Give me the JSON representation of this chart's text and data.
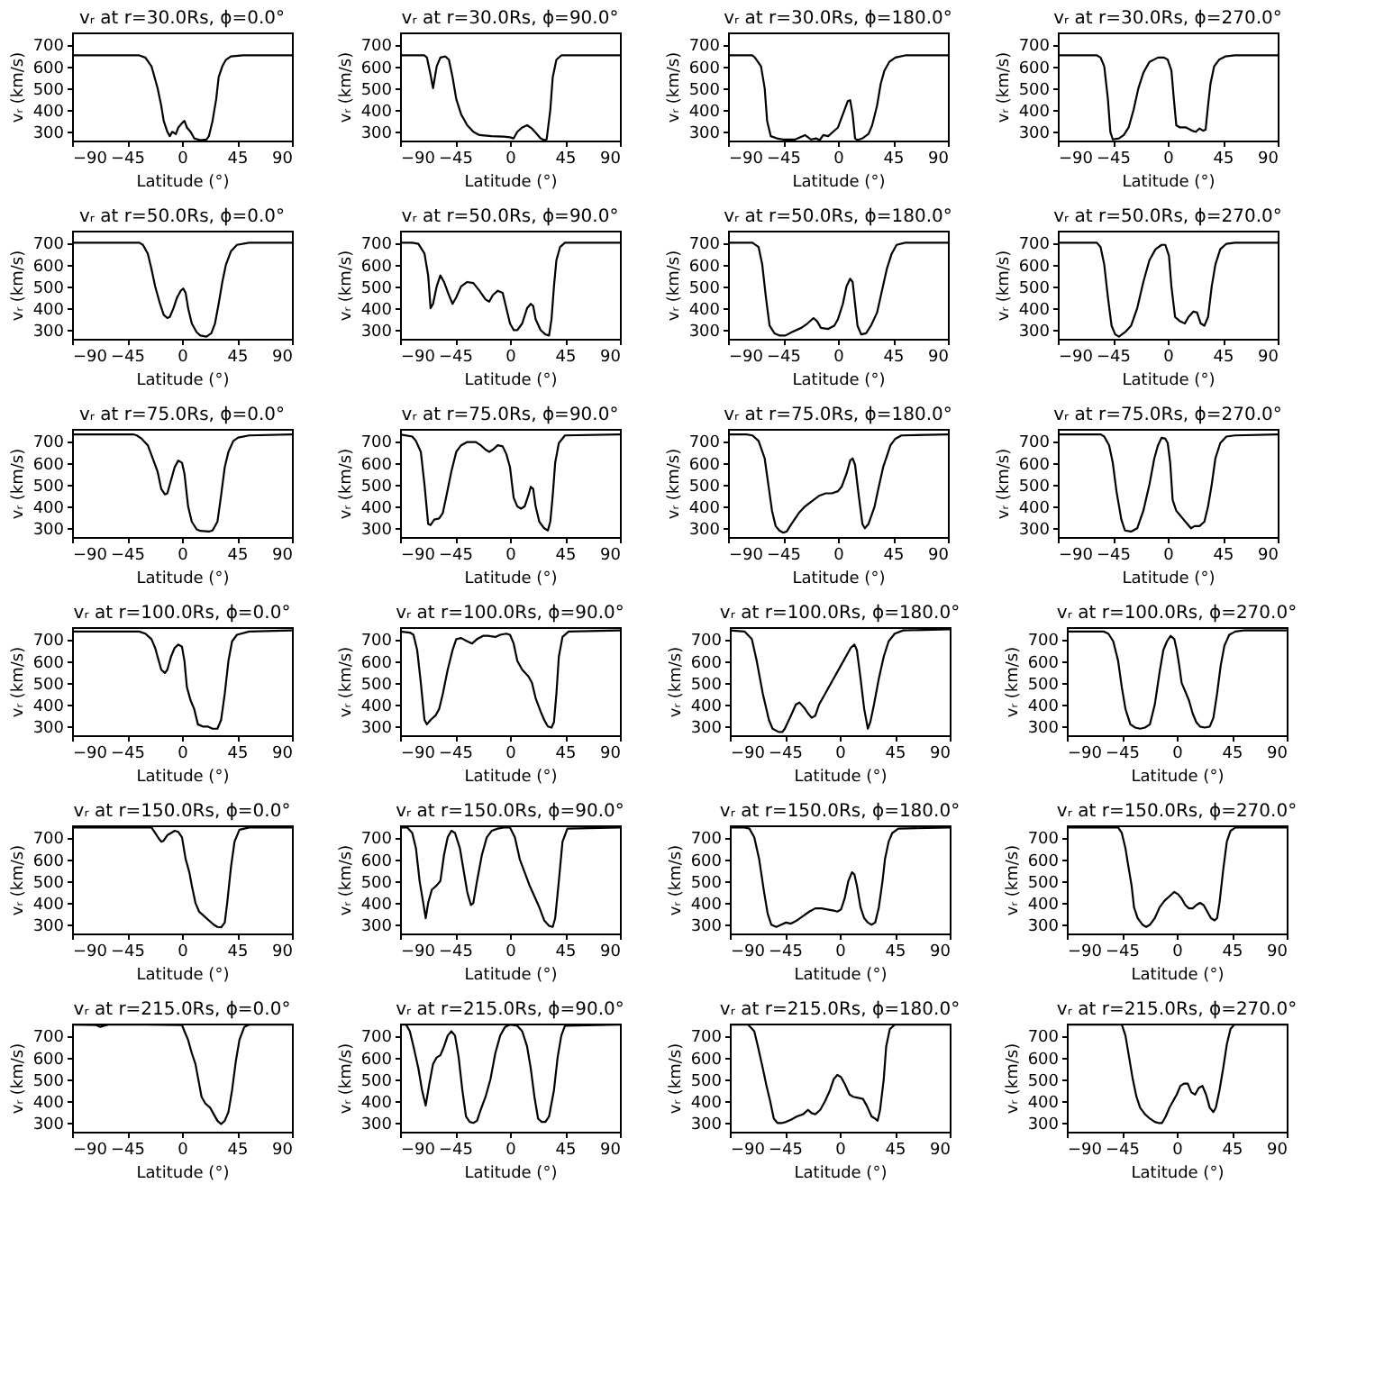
{
  "chart_data": [
    {
      "type": "line",
      "title": "vᵣ at r=30.0Rs, ϕ=0.0°",
      "xlabel": "Latitude (°)",
      "ylabel": "vᵣ (km/s)",
      "color": "#000000",
      "xlim": [
        -90,
        90
      ],
      "ylim": [
        260,
        755
      ],
      "xticks": [
        -90,
        -45,
        0,
        45,
        90
      ],
      "yticks": [
        300,
        400,
        500,
        600,
        700
      ],
      "x": [
        -90,
        -35,
        -30,
        -25,
        -20,
        -17,
        -15,
        -12,
        -10,
        -8,
        -5,
        -3,
        0,
        2,
        4,
        7,
        10,
        15,
        20,
        22,
        25,
        28,
        30,
        33,
        36,
        40,
        50,
        90
      ],
      "values": [
        650,
        650,
        640,
        600,
        500,
        420,
        350,
        300,
        280,
        300,
        290,
        320,
        340,
        350,
        320,
        300,
        270,
        262,
        265,
        280,
        350,
        450,
        550,
        600,
        630,
        645,
        650,
        650
      ]
    },
    {
      "type": "line",
      "title": "vᵣ at r=30.0Rs, ϕ=90.0°",
      "xlabel": "Latitude (°)",
      "ylabel": "vᵣ (km/s)",
      "color": "#000000",
      "xlim": [
        -90,
        90
      ],
      "ylim": [
        260,
        755
      ],
      "xticks": [
        -90,
        -45,
        0,
        45,
        90
      ],
      "yticks": [
        300,
        400,
        500,
        600,
        700
      ],
      "x": [
        -90,
        -70,
        -68,
        -65,
        -63,
        -60,
        -57,
        -53,
        -50,
        -47,
        -44,
        -40,
        -35,
        -30,
        -25,
        -15,
        -5,
        0,
        3,
        6,
        10,
        14,
        18,
        22,
        25,
        28,
        30,
        33,
        35,
        38,
        42,
        90
      ],
      "values": [
        650,
        650,
        640,
        560,
        500,
        600,
        640,
        645,
        630,
        550,
        450,
        380,
        330,
        300,
        285,
        280,
        278,
        275,
        270,
        300,
        320,
        330,
        315,
        290,
        270,
        262,
        265,
        400,
        550,
        630,
        650,
        650
      ]
    },
    {
      "type": "line",
      "title": "vᵣ at r=30.0Rs, ϕ=180.0°",
      "xlabel": "Latitude (°)",
      "ylabel": "vᵣ (km/s)",
      "color": "#000000",
      "xlim": [
        -90,
        90
      ],
      "ylim": [
        260,
        755
      ],
      "xticks": [
        -90,
        -45,
        0,
        45,
        90
      ],
      "yticks": [
        300,
        400,
        500,
        600,
        700
      ],
      "x": [
        -90,
        -70,
        -68,
        -63,
        -60,
        -58,
        -55,
        -50,
        -45,
        -35,
        -27,
        -22,
        -18,
        -15,
        -12,
        -8,
        -4,
        0,
        4,
        8,
        10,
        12,
        14,
        16,
        20,
        25,
        28,
        32,
        35,
        38,
        42,
        47,
        55,
        90
      ],
      "values": [
        650,
        650,
        640,
        600,
        500,
        350,
        280,
        270,
        265,
        265,
        285,
        265,
        270,
        262,
        285,
        280,
        300,
        320,
        380,
        440,
        445,
        380,
        270,
        262,
        270,
        290,
        330,
        420,
        520,
        580,
        620,
        640,
        650,
        650
      ]
    },
    {
      "type": "line",
      "title": "vᵣ at r=30.0Rs, ϕ=270.0°",
      "xlabel": "Latitude (°)",
      "ylabel": "vᵣ (km/s)",
      "color": "#000000",
      "xlim": [
        -90,
        90
      ],
      "ylim": [
        260,
        755
      ],
      "xticks": [
        -90,
        -45,
        0,
        45,
        90
      ],
      "yticks": [
        300,
        400,
        500,
        600,
        700
      ],
      "x": [
        -90,
        -58,
        -55,
        -52,
        -49,
        -47,
        -45,
        -40,
        -36,
        -32,
        -28,
        -24,
        -20,
        -15,
        -8,
        -3,
        0,
        3,
        5,
        7,
        10,
        15,
        20,
        23,
        26,
        29,
        31,
        33,
        35,
        38,
        42,
        47,
        55,
        90
      ],
      "values": [
        650,
        650,
        640,
        600,
        450,
        300,
        265,
        270,
        285,
        320,
        400,
        500,
        570,
        620,
        640,
        640,
        630,
        580,
        450,
        330,
        320,
        320,
        305,
        300,
        315,
        305,
        310,
        420,
        520,
        600,
        630,
        645,
        650,
        650
      ]
    },
    {
      "type": "line",
      "title": "vᵣ at r=50.0Rs, ϕ=0.0°",
      "xlabel": "Latitude (°)",
      "ylabel": "vᵣ (km/s)",
      "color": "#000000",
      "xlim": [
        -90,
        90
      ],
      "ylim": [
        260,
        755
      ],
      "xticks": [
        -90,
        -45,
        0,
        45,
        90
      ],
      "yticks": [
        300,
        400,
        500,
        600,
        700
      ],
      "x": [
        -90,
        -35,
        -32,
        -28,
        -25,
        -22,
        -18,
        -15,
        -12,
        -10,
        -7,
        -4,
        -1,
        1,
        3,
        5,
        8,
        12,
        15,
        20,
        24,
        27,
        30,
        33,
        36,
        40,
        45,
        55,
        90
      ],
      "values": [
        700,
        700,
        690,
        650,
        580,
        500,
        420,
        370,
        355,
        360,
        400,
        450,
        480,
        490,
        470,
        400,
        330,
        290,
        275,
        270,
        285,
        330,
        420,
        520,
        600,
        660,
        690,
        700,
        700
      ]
    },
    {
      "type": "line",
      "title": "vᵣ at r=50.0Rs, ϕ=90.0°",
      "xlabel": "Latitude (°)",
      "ylabel": "vᵣ (km/s)",
      "color": "#000000",
      "xlim": [
        -90,
        90
      ],
      "ylim": [
        260,
        755
      ],
      "xticks": [
        -90,
        -45,
        0,
        45,
        90
      ],
      "yticks": [
        300,
        400,
        500,
        600,
        700
      ],
      "x": [
        -90,
        -80,
        -75,
        -70,
        -67,
        -65,
        -63,
        -60,
        -57,
        -54,
        -50,
        -47,
        -44,
        -40,
        -35,
        -30,
        -25,
        -20,
        -17,
        -14,
        -10,
        -6,
        -3,
        0,
        3,
        6,
        10,
        14,
        17,
        19,
        21,
        25,
        29,
        32,
        34,
        36,
        38,
        41,
        45,
        90
      ],
      "values": [
        700,
        700,
        695,
        650,
        550,
        400,
        420,
        500,
        550,
        520,
        460,
        420,
        450,
        500,
        520,
        515,
        480,
        440,
        430,
        460,
        480,
        470,
        400,
        330,
        300,
        300,
        330,
        400,
        420,
        410,
        350,
        300,
        280,
        275,
        350,
        500,
        620,
        680,
        700,
        700
      ]
    },
    {
      "type": "line",
      "title": "vᵣ at r=50.0Rs, ϕ=180.0°",
      "xlabel": "Latitude (°)",
      "ylabel": "vᵣ (km/s)",
      "color": "#000000",
      "xlim": [
        -90,
        90
      ],
      "ylim": [
        260,
        755
      ],
      "xticks": [
        -90,
        -45,
        0,
        45,
        90
      ],
      "yticks": [
        300,
        400,
        500,
        600,
        700
      ],
      "x": [
        -90,
        -70,
        -65,
        -62,
        -59,
        -56,
        -52,
        -48,
        -43,
        -38,
        -30,
        -25,
        -20,
        -17,
        -14,
        -8,
        -3,
        0,
        4,
        7,
        10,
        12,
        14,
        16,
        19,
        23,
        27,
        32,
        36,
        40,
        44,
        48,
        55,
        90
      ],
      "values": [
        700,
        700,
        680,
        600,
        450,
        320,
        285,
        275,
        275,
        290,
        310,
        330,
        355,
        340,
        310,
        305,
        320,
        350,
        420,
        500,
        535,
        520,
        420,
        320,
        280,
        285,
        320,
        380,
        480,
        580,
        650,
        690,
        700,
        700
      ]
    },
    {
      "type": "line",
      "title": "vᵣ at r=50.0Rs, ϕ=270.0°",
      "xlabel": "Latitude (°)",
      "ylabel": "vᵣ (km/s)",
      "color": "#000000",
      "xlim": [
        -90,
        90
      ],
      "ylim": [
        260,
        755
      ],
      "xticks": [
        -90,
        -45,
        0,
        45,
        90
      ],
      "yticks": [
        300,
        400,
        500,
        600,
        700
      ],
      "x": [
        -90,
        -58,
        -55,
        -52,
        -49,
        -46,
        -43,
        -40,
        -35,
        -30,
        -25,
        -20,
        -15,
        -10,
        -5,
        -2,
        1,
        3,
        6,
        10,
        14,
        17,
        21,
        24,
        27,
        30,
        33,
        36,
        39,
        43,
        48,
        55,
        90
      ],
      "values": [
        700,
        700,
        680,
        600,
        450,
        320,
        280,
        270,
        290,
        320,
        400,
        520,
        620,
        670,
        690,
        690,
        640,
        500,
        360,
        340,
        330,
        360,
        385,
        380,
        330,
        320,
        360,
        500,
        600,
        670,
        695,
        700,
        700
      ]
    },
    {
      "type": "line",
      "title": "vᵣ at r=75.0Rs, ϕ=0.0°",
      "xlabel": "Latitude (°)",
      "ylabel": "vᵣ (km/s)",
      "color": "#000000",
      "xlim": [
        -90,
        90
      ],
      "ylim": [
        260,
        755
      ],
      "xticks": [
        -90,
        -45,
        0,
        45,
        90
      ],
      "yticks": [
        300,
        400,
        500,
        600,
        700
      ],
      "x": [
        -90,
        -40,
        -37,
        -33,
        -28,
        -24,
        -20,
        -17,
        -14,
        -12,
        -9,
        -6,
        -3,
        0,
        2,
        5,
        8,
        12,
        15,
        22,
        25,
        29,
        32,
        35,
        38,
        42,
        46,
        55,
        90
      ],
      "values": [
        730,
        730,
        725,
        710,
        680,
        620,
        560,
        480,
        455,
        460,
        520,
        580,
        610,
        600,
        550,
        400,
        330,
        295,
        288,
        285,
        290,
        330,
        450,
        580,
        650,
        700,
        715,
        725,
        730
      ]
    },
    {
      "type": "line",
      "title": "vᵣ at r=75.0Rs, ϕ=90.0°",
      "xlabel": "Latitude (°)",
      "ylabel": "vᵣ (km/s)",
      "color": "#000000",
      "xlim": [
        -90,
        90
      ],
      "ylim": [
        260,
        755
      ],
      "xticks": [
        -90,
        -45,
        0,
        45,
        90
      ],
      "yticks": [
        300,
        400,
        500,
        600,
        700
      ],
      "x": [
        -90,
        -80,
        -77,
        -73,
        -70,
        -67,
        -65,
        -62,
        -58,
        -55,
        -52,
        -48,
        -44,
        -40,
        -35,
        -28,
        -24,
        -20,
        -17,
        -14,
        -10,
        -6,
        -3,
        0,
        3,
        6,
        9,
        12,
        15,
        17,
        19,
        21,
        24,
        28,
        31,
        33,
        35,
        37,
        40,
        45,
        90
      ],
      "values": [
        730,
        720,
        700,
        650,
        500,
        320,
        315,
        340,
        345,
        370,
        450,
        560,
        650,
        680,
        695,
        695,
        680,
        660,
        650,
        660,
        680,
        675,
        640,
        580,
        440,
        400,
        390,
        400,
        450,
        490,
        480,
        400,
        330,
        300,
        290,
        330,
        450,
        600,
        690,
        725,
        730
      ]
    },
    {
      "type": "line",
      "title": "vᵣ at r=75.0Rs, ϕ=180.0°",
      "xlabel": "Latitude (°)",
      "ylabel": "vᵣ (km/s)",
      "color": "#000000",
      "xlim": [
        -90,
        90
      ],
      "ylim": [
        260,
        755
      ],
      "xticks": [
        -90,
        -45,
        0,
        45,
        90
      ],
      "yticks": [
        300,
        400,
        500,
        600,
        700
      ],
      "x": [
        -90,
        -75,
        -70,
        -65,
        -60,
        -57,
        -54,
        -51,
        -48,
        -45,
        -42,
        -38,
        -32,
        -27,
        -20,
        -15,
        -10,
        -5,
        0,
        3,
        7,
        10,
        12,
        14,
        17,
        20,
        22,
        25,
        30,
        33,
        37,
        40,
        43,
        47,
        52,
        90
      ],
      "values": [
        730,
        730,
        725,
        700,
        620,
        500,
        380,
        310,
        290,
        280,
        285,
        320,
        370,
        400,
        430,
        450,
        460,
        460,
        470,
        490,
        550,
        610,
        620,
        590,
        450,
        320,
        300,
        320,
        400,
        480,
        580,
        630,
        680,
        710,
        725,
        730
      ]
    },
    {
      "type": "line",
      "title": "vᵣ at r=75.0Rs, ϕ=270.0°",
      "xlabel": "Latitude (°)",
      "ylabel": "vᵣ (km/s)",
      "color": "#000000",
      "xlim": [
        -90,
        90
      ],
      "ylim": [
        260,
        755
      ],
      "xticks": [
        -90,
        -45,
        0,
        45,
        90
      ],
      "yticks": [
        300,
        400,
        500,
        600,
        700
      ],
      "x": [
        -90,
        -55,
        -52,
        -48,
        -45,
        -42,
        -38,
        -35,
        -30,
        -25,
        -20,
        -15,
        -11,
        -8,
        -5,
        -2,
        0,
        2,
        4,
        7,
        10,
        13,
        16,
        19,
        22,
        26,
        30,
        33,
        36,
        39,
        43,
        48,
        55,
        90
      ],
      "values": [
        730,
        730,
        720,
        680,
        600,
        470,
        340,
        290,
        285,
        300,
        380,
        500,
        620,
        680,
        715,
        710,
        690,
        600,
        430,
        380,
        360,
        340,
        320,
        300,
        310,
        310,
        330,
        400,
        500,
        620,
        690,
        720,
        725,
        730
      ]
    },
    {
      "type": "line",
      "title": "vᵣ at r=100.0Rs, ϕ=0.0°",
      "xlabel": "Latitude (°)",
      "ylabel": "vᵣ (km/s)",
      "color": "#000000",
      "xlim": [
        -90,
        90
      ],
      "ylim": [
        260,
        755
      ],
      "xticks": [
        -90,
        -45,
        0,
        45,
        90
      ],
      "yticks": [
        300,
        400,
        500,
        600,
        700
      ],
      "x": [
        -90,
        -35,
        -30,
        -25,
        -22,
        -20,
        -17,
        -14,
        -12,
        -9,
        -6,
        -3,
        0,
        2,
        4,
        7,
        10,
        13,
        17,
        21,
        25,
        29,
        32,
        35,
        38,
        41,
        45,
        55,
        90
      ],
      "values": [
        735,
        735,
        725,
        700,
        660,
        620,
        560,
        545,
        560,
        620,
        660,
        675,
        665,
        600,
        480,
        420,
        380,
        310,
        300,
        300,
        290,
        290,
        330,
        450,
        600,
        690,
        720,
        735,
        740
      ]
    },
    {
      "type": "line",
      "title": "vᵣ at r=100.0Rs, ϕ=90.0°",
      "xlabel": "Latitude (°)",
      "ylabel": "vᵣ (km/s)",
      "color": "#000000",
      "xlim": [
        -90,
        90
      ],
      "ylim": [
        260,
        755
      ],
      "xticks": [
        -90,
        -45,
        0,
        45,
        90
      ],
      "yticks": [
        300,
        400,
        500,
        600,
        700
      ],
      "x": [
        -90,
        -82,
        -79,
        -76,
        -73,
        -70,
        -68,
        -65,
        -61,
        -58,
        -55,
        -51,
        -47,
        -44,
        -40,
        -35,
        -31,
        -27,
        -22,
        -18,
        -12,
        -8,
        -3,
        0,
        3,
        6,
        10,
        15,
        18,
        21,
        25,
        28,
        31,
        34,
        36,
        38,
        40,
        43,
        48,
        90
      ],
      "values": [
        735,
        730,
        720,
        650,
        500,
        330,
        310,
        330,
        350,
        380,
        450,
        560,
        650,
        700,
        705,
        690,
        680,
        700,
        715,
        715,
        710,
        720,
        725,
        720,
        680,
        600,
        560,
        530,
        500,
        430,
        370,
        330,
        300,
        295,
        320,
        450,
        620,
        710,
        735,
        740
      ]
    },
    {
      "type": "line",
      "title": "vᵣ at r=100.0Rs, ϕ=180.0°",
      "xlabel": "Latitude (°)",
      "ylabel": "vᵣ (km/s)",
      "color": "#000000",
      "xlim": [
        -90,
        90
      ],
      "ylim": [
        260,
        755
      ],
      "xticks": [
        -90,
        -45,
        0,
        45,
        90
      ],
      "yticks": [
        300,
        400,
        500,
        600,
        700
      ],
      "x": [
        -90,
        -78,
        -72,
        -68,
        -63,
        -58,
        -55,
        -50,
        -47,
        -45,
        -40,
        -36,
        -33,
        -29,
        -26,
        -23,
        -20,
        -17,
        -12,
        -5,
        0,
        5,
        9,
        12,
        14,
        17,
        20,
        23,
        25,
        28,
        32,
        36,
        40,
        45,
        52,
        90
      ],
      "values": [
        740,
        735,
        700,
        600,
        450,
        330,
        290,
        275,
        275,
        290,
        350,
        400,
        410,
        385,
        360,
        340,
        350,
        400,
        450,
        520,
        570,
        620,
        660,
        675,
        650,
        520,
        380,
        290,
        320,
        400,
        520,
        620,
        690,
        725,
        740,
        745
      ]
    },
    {
      "type": "line",
      "title": "vᵣ at r=100.0Rs, ϕ=270.0°",
      "xlabel": "Latitude (°)",
      "ylabel": "vᵣ (km/s)",
      "color": "#000000",
      "xlim": [
        -90,
        90
      ],
      "ylim": [
        260,
        755
      ],
      "xticks": [
        -90,
        -45,
        0,
        45,
        90
      ],
      "yticks": [
        300,
        400,
        500,
        600,
        700
      ],
      "x": [
        -90,
        -60,
        -56,
        -52,
        -48,
        -45,
        -42,
        -38,
        -34,
        -30,
        -26,
        -22,
        -18,
        -14,
        -11,
        -8,
        -5,
        -2,
        0,
        2,
        4,
        7,
        10,
        13,
        16,
        19,
        23,
        27,
        30,
        33,
        36,
        39,
        43,
        48,
        55,
        90
      ],
      "values": [
        735,
        735,
        725,
        690,
        600,
        480,
        380,
        310,
        295,
        290,
        295,
        310,
        400,
        550,
        650,
        690,
        715,
        700,
        650,
        580,
        500,
        460,
        420,
        360,
        320,
        300,
        295,
        300,
        340,
        450,
        580,
        670,
        720,
        735,
        740,
        740
      ]
    },
    {
      "type": "line",
      "title": "vᵣ at r=150.0Rs, ϕ=0.0°",
      "xlabel": "Latitude (°)",
      "ylabel": "vᵣ (km/s)",
      "color": "#000000",
      "xlim": [
        -90,
        90
      ],
      "ylim": [
        260,
        755
      ],
      "xticks": [
        -90,
        -45,
        0,
        45,
        90
      ],
      "yticks": [
        300,
        400,
        500,
        600,
        700
      ],
      "x": [
        -90,
        -25,
        -22,
        -19,
        -17,
        -15,
        -12,
        -9,
        -6,
        -3,
        0,
        3,
        6,
        8,
        11,
        14,
        18,
        22,
        26,
        29,
        32,
        35,
        37,
        40,
        43,
        47,
        55,
        90
      ],
      "values": [
        745,
        745,
        720,
        695,
        680,
        685,
        710,
        720,
        730,
        725,
        700,
        600,
        540,
        480,
        400,
        360,
        340,
        320,
        300,
        290,
        288,
        310,
        400,
        560,
        680,
        735,
        745,
        745
      ]
    },
    {
      "type": "line",
      "title": "vᵣ at r=150.0Rs, ϕ=90.0°",
      "xlabel": "Latitude (°)",
      "ylabel": "vᵣ (km/s)",
      "color": "#000000",
      "xlim": [
        -90,
        90
      ],
      "ylim": [
        260,
        755
      ],
      "xticks": [
        -90,
        -45,
        0,
        45,
        90
      ],
      "yticks": [
        300,
        400,
        500,
        600,
        700
      ],
      "x": [
        -90,
        -84,
        -80,
        -77,
        -74,
        -71,
        -69,
        -67,
        -64,
        -60,
        -57,
        -54,
        -51,
        -48,
        -45,
        -41,
        -38,
        -35,
        -32,
        -30,
        -27,
        -23,
        -19,
        -15,
        -10,
        -5,
        0,
        4,
        8,
        12,
        16,
        20,
        24,
        28,
        32,
        35,
        37,
        40,
        43,
        47,
        90
      ],
      "values": [
        745,
        745,
        720,
        650,
        500,
        400,
        330,
        400,
        460,
        480,
        500,
        620,
        700,
        730,
        720,
        650,
        550,
        450,
        390,
        400,
        500,
        620,
        700,
        730,
        740,
        745,
        745,
        700,
        600,
        540,
        480,
        430,
        380,
        320,
        295,
        290,
        330,
        500,
        680,
        740,
        745
      ]
    },
    {
      "type": "line",
      "title": "vᵣ at r=150.0Rs, ϕ=180.0°",
      "xlabel": "Latitude (°)",
      "ylabel": "vᵣ (km/s)",
      "color": "#000000",
      "xlim": [
        -90,
        90
      ],
      "ylim": [
        260,
        755
      ],
      "xticks": [
        -90,
        -45,
        0,
        45,
        90
      ],
      "yticks": [
        300,
        400,
        500,
        600,
        700
      ],
      "x": [
        -90,
        -78,
        -74,
        -70,
        -66,
        -62,
        -59,
        -56,
        -52,
        -48,
        -44,
        -40,
        -35,
        -30,
        -25,
        -20,
        -15,
        -10,
        -5,
        -2,
        1,
        4,
        7,
        10,
        12,
        14,
        17,
        20,
        23,
        26,
        29,
        32,
        35,
        37,
        40,
        43,
        48,
        90
      ],
      "values": [
        745,
        745,
        740,
        700,
        600,
        450,
        350,
        300,
        290,
        300,
        310,
        305,
        320,
        340,
        360,
        375,
        375,
        370,
        365,
        360,
        370,
        420,
        500,
        540,
        530,
        480,
        380,
        330,
        310,
        300,
        310,
        380,
        500,
        600,
        680,
        720,
        740,
        745
      ]
    },
    {
      "type": "line",
      "title": "vᵣ at r=150.0Rs, ϕ=270.0°",
      "xlabel": "Latitude (°)",
      "ylabel": "vᵣ (km/s)",
      "color": "#000000",
      "xlim": [
        -90,
        90
      ],
      "ylim": [
        260,
        755
      ],
      "xticks": [
        -90,
        -45,
        0,
        45,
        90
      ],
      "yticks": [
        300,
        400,
        500,
        600,
        700
      ],
      "x": [
        -90,
        -48,
        -45,
        -42,
        -40,
        -37,
        -35,
        -32,
        -28,
        -25,
        -22,
        -18,
        -14,
        -10,
        -6,
        -2,
        1,
        4,
        7,
        10,
        13,
        16,
        19,
        22,
        25,
        28,
        31,
        33,
        35,
        38,
        41,
        44,
        48,
        90
      ],
      "values": [
        745,
        745,
        720,
        650,
        580,
        480,
        380,
        330,
        300,
        290,
        300,
        330,
        380,
        410,
        430,
        450,
        440,
        420,
        390,
        375,
        375,
        390,
        400,
        390,
        360,
        330,
        320,
        330,
        400,
        550,
        680,
        730,
        745,
        745
      ]
    },
    {
      "type": "line",
      "title": "vᵣ at r=215.0Rs, ϕ=0.0°",
      "xlabel": "Latitude (°)",
      "ylabel": "vᵣ (km/s)",
      "color": "#000000",
      "xlim": [
        -90,
        90
      ],
      "ylim": [
        260,
        755
      ],
      "xticks": [
        -90,
        -45,
        0,
        45,
        90
      ],
      "yticks": [
        300,
        400,
        500,
        600,
        700
      ],
      "x": [
        -90,
        -70,
        -67,
        -64,
        -60,
        -30,
        0,
        2,
        5,
        8,
        11,
        14,
        16,
        19,
        23,
        26,
        29,
        32,
        35,
        38,
        41,
        44,
        47,
        51,
        55,
        90
      ],
      "values": [
        750,
        748,
        740,
        745,
        750,
        750,
        748,
        720,
        680,
        620,
        570,
        480,
        420,
        390,
        370,
        340,
        310,
        295,
        310,
        350,
        450,
        580,
        680,
        740,
        750,
        750
      ]
    },
    {
      "type": "line",
      "title": "vᵣ at r=215.0Rs, ϕ=90.0°",
      "xlabel": "Latitude (°)",
      "ylabel": "vᵣ (km/s)",
      "color": "#000000",
      "xlim": [
        -90,
        90
      ],
      "ylim": [
        260,
        755
      ],
      "xticks": [
        -90,
        -45,
        0,
        45,
        90
      ],
      "yticks": [
        300,
        400,
        500,
        600,
        700
      ],
      "x": [
        -90,
        -85,
        -82,
        -79,
        -75,
        -72,
        -69,
        -66,
        -63,
        -60,
        -57,
        -54,
        -51,
        -48,
        -45,
        -42,
        -39,
        -36,
        -33,
        -30,
        -27,
        -24,
        -20,
        -16,
        -12,
        -8,
        -4,
        0,
        6,
        10,
        14,
        17,
        20,
        23,
        26,
        29,
        32,
        36,
        39,
        42,
        45,
        90
      ],
      "values": [
        750,
        750,
        720,
        650,
        550,
        450,
        380,
        480,
        570,
        600,
        610,
        650,
        700,
        720,
        700,
        600,
        450,
        330,
        305,
        300,
        310,
        360,
        420,
        500,
        620,
        700,
        740,
        750,
        745,
        720,
        650,
        550,
        420,
        320,
        305,
        305,
        330,
        450,
        600,
        700,
        745,
        750
      ]
    },
    {
      "type": "line",
      "title": "vᵣ at r=215.0Rs, ϕ=180.0°",
      "xlabel": "Latitude (°)",
      "ylabel": "vᵣ (km/s)",
      "color": "#000000",
      "xlim": [
        -90,
        90
      ],
      "ylim": [
        260,
        755
      ],
      "xticks": [
        -90,
        -45,
        0,
        45,
        90
      ],
      "yticks": [
        300,
        400,
        500,
        600,
        700
      ],
      "x": [
        -90,
        -75,
        -70,
        -67,
        -63,
        -60,
        -57,
        -54,
        -51,
        -47,
        -44,
        -40,
        -35,
        -30,
        -26,
        -23,
        -20,
        -16,
        -12,
        -8,
        -5,
        -2,
        1,
        4,
        8,
        11,
        15,
        19,
        22,
        26,
        29,
        31,
        33,
        36,
        38,
        41,
        45,
        90
      ],
      "values": [
        750,
        750,
        720,
        650,
        550,
        470,
        400,
        320,
        300,
        300,
        305,
        315,
        330,
        340,
        360,
        345,
        340,
        360,
        400,
        450,
        500,
        520,
        510,
        480,
        430,
        420,
        415,
        410,
        380,
        330,
        320,
        310,
        360,
        500,
        650,
        730,
        750,
        750
      ]
    },
    {
      "type": "line",
      "title": "vᵣ at r=215.0Rs, ϕ=270.0°",
      "xlabel": "Latitude (°)",
      "ylabel": "vᵣ (km/s)",
      "color": "#000000",
      "xlim": [
        -90,
        90
      ],
      "ylim": [
        260,
        755
      ],
      "xticks": [
        -90,
        -45,
        0,
        45,
        90
      ],
      "yticks": [
        300,
        400,
        500,
        600,
        700
      ],
      "x": [
        -90,
        -45,
        -42,
        -39,
        -36,
        -33,
        -30,
        -26,
        -22,
        -18,
        -15,
        -12,
        -9,
        -6,
        -3,
        0,
        3,
        6,
        9,
        12,
        15,
        18,
        21,
        24,
        27,
        30,
        32,
        35,
        38,
        41,
        44,
        47,
        90
      ],
      "values": [
        750,
        750,
        700,
        600,
        500,
        420,
        370,
        340,
        320,
        305,
        300,
        300,
        330,
        370,
        400,
        430,
        470,
        480,
        480,
        440,
        430,
        460,
        470,
        430,
        370,
        350,
        370,
        450,
        550,
        660,
        730,
        750,
        750
      ]
    }
  ]
}
